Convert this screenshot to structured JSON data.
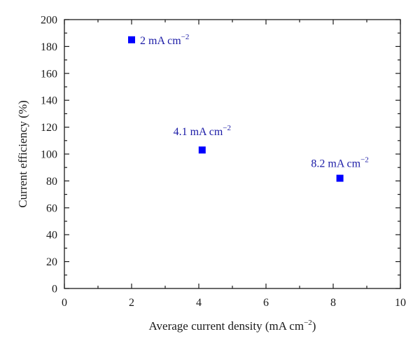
{
  "chart_data": {
    "type": "scatter",
    "xlabel": "Average current density (mA cm−2)",
    "xlabel_base": "Average current density (mA cm",
    "xlabel_sup": "−2",
    "xlabel_end": ")",
    "ylabel": "Current efficiency (%)",
    "xlim": [
      0,
      10
    ],
    "ylim": [
      0,
      200
    ],
    "xticks": [
      0,
      2,
      4,
      6,
      8,
      10
    ],
    "yticks": [
      0,
      20,
      40,
      60,
      80,
      100,
      120,
      140,
      160,
      180,
      200
    ],
    "marker": "square",
    "marker_color": "#0000ff",
    "label_color": "#1a1aa6",
    "axis_color": "#1a1a1a",
    "grid": false,
    "points": [
      {
        "x": 2.0,
        "y": 185,
        "label": "2 mA cm−2",
        "label_base": "2 mA cm",
        "label_sup": "−2"
      },
      {
        "x": 4.1,
        "y": 103,
        "label": "4.1 mA cm−2",
        "label_base": "4.1 mA cm",
        "label_sup": "−2"
      },
      {
        "x": 8.2,
        "y": 82,
        "label": "8.2 mA cm−2",
        "label_base": "8.2 mA cm",
        "label_sup": "−2"
      }
    ]
  }
}
